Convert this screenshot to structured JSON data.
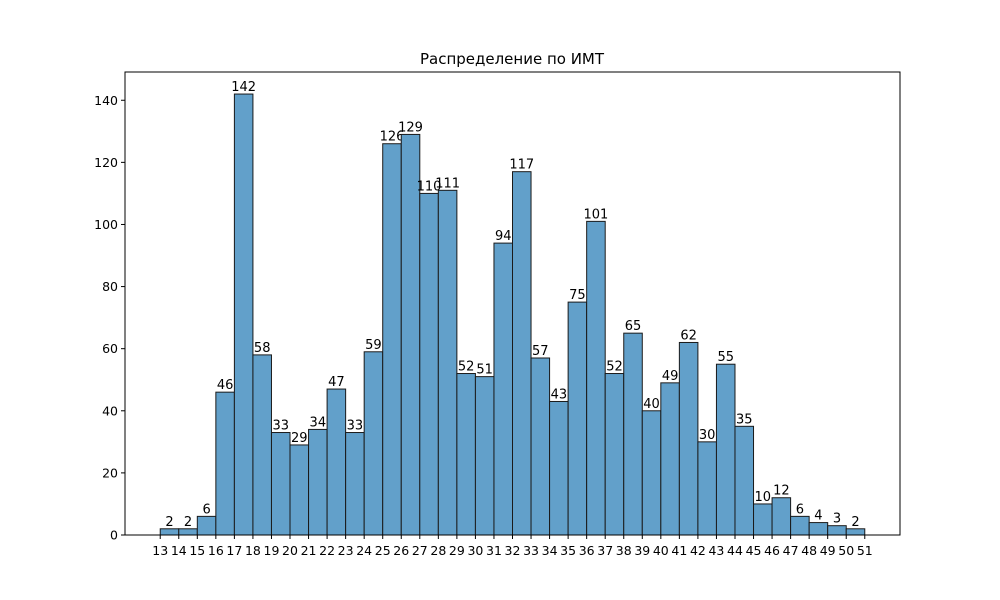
{
  "chart_data": {
    "type": "histogram",
    "title": "Распределение по ИМТ",
    "bins": [
      13,
      14,
      15,
      16,
      17,
      18,
      19,
      20,
      21,
      22,
      23,
      24,
      25,
      26,
      27,
      28,
      29,
      30,
      31,
      32,
      33,
      34,
      35,
      36,
      37,
      38,
      39,
      40,
      41,
      42,
      43,
      44,
      45,
      46,
      47,
      48,
      49,
      50,
      51
    ],
    "values": [
      2,
      2,
      6,
      46,
      142,
      58,
      33,
      29,
      34,
      47,
      33,
      59,
      126,
      129,
      110,
      111,
      52,
      51,
      94,
      117,
      57,
      43,
      75,
      101,
      52,
      65,
      40,
      49,
      62,
      30,
      55,
      35,
      10,
      12,
      6,
      4,
      3,
      2
    ],
    "color": "#62a0ca",
    "xlim": [
      11.1,
      52.9
    ],
    "xticks": [
      13,
      14,
      15,
      16,
      17,
      18,
      19,
      20,
      21,
      22,
      23,
      24,
      25,
      26,
      27,
      28,
      29,
      30,
      31,
      32,
      33,
      34,
      35,
      36,
      37,
      38,
      39,
      40,
      41,
      42,
      43,
      44,
      45,
      46,
      47,
      48,
      49,
      50,
      51
    ],
    "ylim": [
      0,
      149.1
    ],
    "yticks": [
      0,
      20,
      40,
      60,
      80,
      100,
      120,
      140
    ]
  }
}
